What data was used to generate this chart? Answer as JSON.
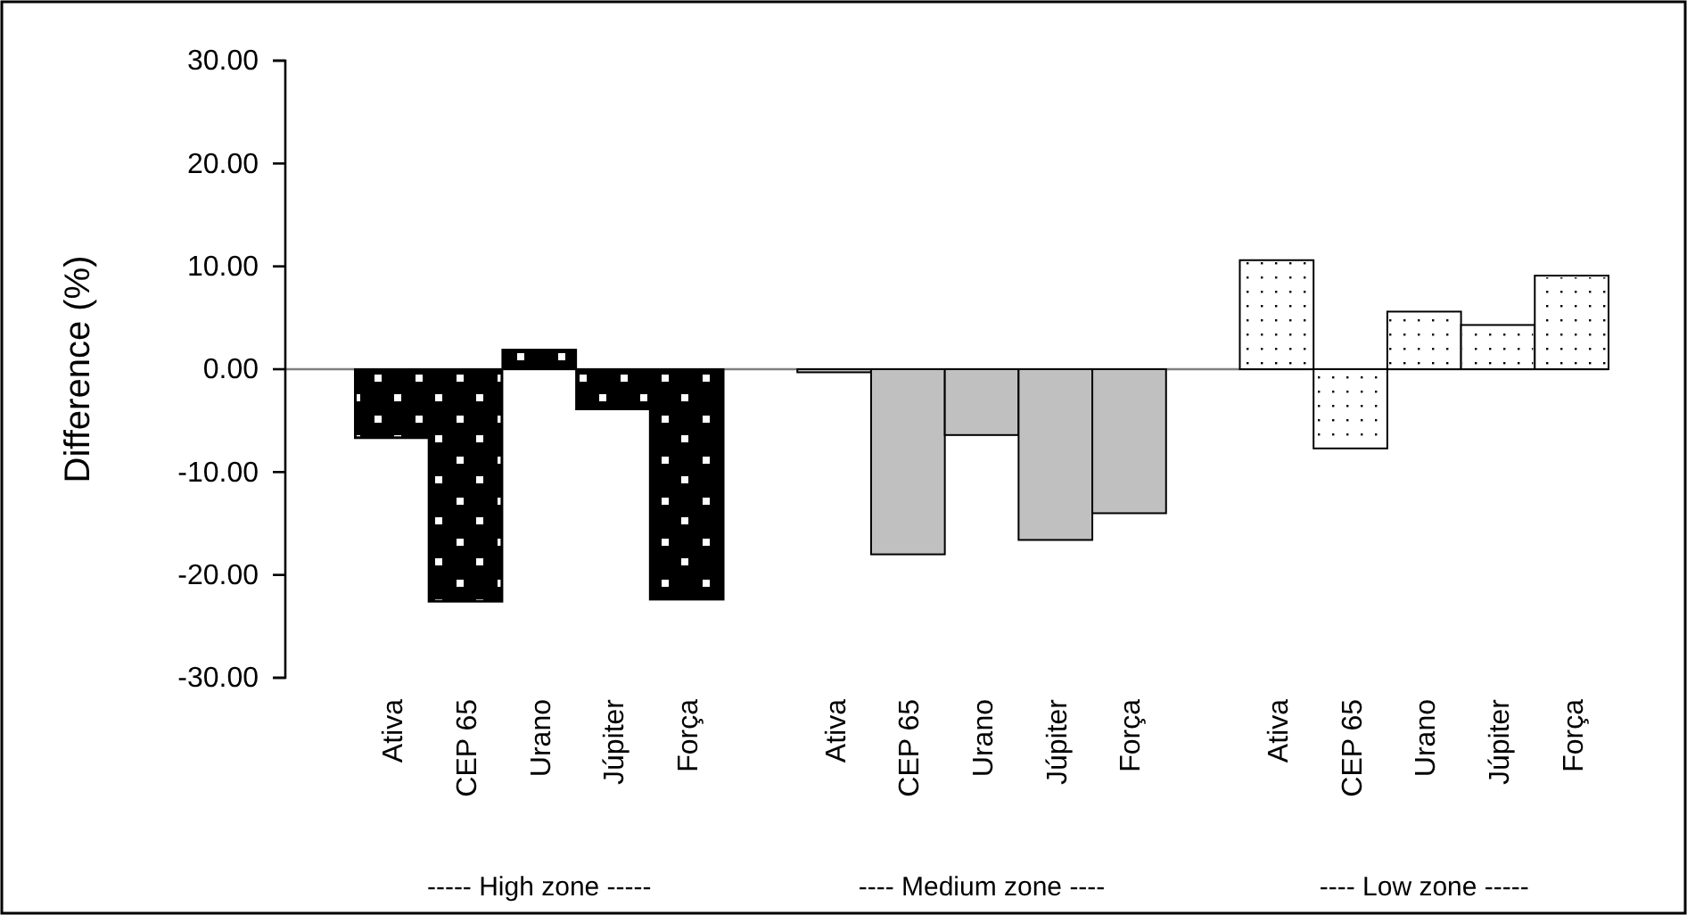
{
  "chart_data": {
    "type": "bar",
    "ylabel": "Difference (%)",
    "categories": [
      "Ativa",
      "CEP 65",
      "Urano",
      "Júpiter",
      "Força",
      null,
      "Ativa",
      "CEP 65",
      "Urano",
      "Júpiter",
      "Força",
      null,
      "Ativa",
      "CEP 65",
      "Urano",
      "Júpiter",
      "Força"
    ],
    "series": [
      {
        "color": "#000000",
        "values": [
          -6.7,
          -22.6,
          1.9,
          -3.9,
          -22.4,
          null,
          null,
          null,
          null,
          null,
          null,
          null,
          null,
          null,
          null,
          null,
          null
        ]
      },
      {
        "color": "#c0c0c0",
        "values": [
          null,
          null,
          null,
          null,
          null,
          null,
          -0.3,
          -18.0,
          -6.4,
          -16.6,
          -14.0,
          null,
          null,
          null,
          null,
          null,
          null
        ]
      },
      {
        "color": "#ffffff",
        "values": [
          null,
          null,
          null,
          null,
          null,
          null,
          null,
          null,
          null,
          null,
          null,
          null,
          10.6,
          -7.7,
          5.6,
          4.3,
          9.1
        ]
      }
    ],
    "annotations": [
      "----- High zone -----",
      "---- Medium zone ----",
      "---- Low zone -----"
    ],
    "ylim": [
      -30,
      30
    ],
    "yticks": [
      {
        "value": -30,
        "label": "-30.00"
      },
      {
        "value": -20,
        "label": "-20.00"
      },
      {
        "value": -10,
        "label": "-10.00"
      },
      {
        "value": 0,
        "label": "0.00"
      },
      {
        "value": 10,
        "label": "10.00"
      },
      {
        "value": 20,
        "label": "20.00"
      },
      {
        "value": 30,
        "label": "30.00"
      }
    ]
  }
}
